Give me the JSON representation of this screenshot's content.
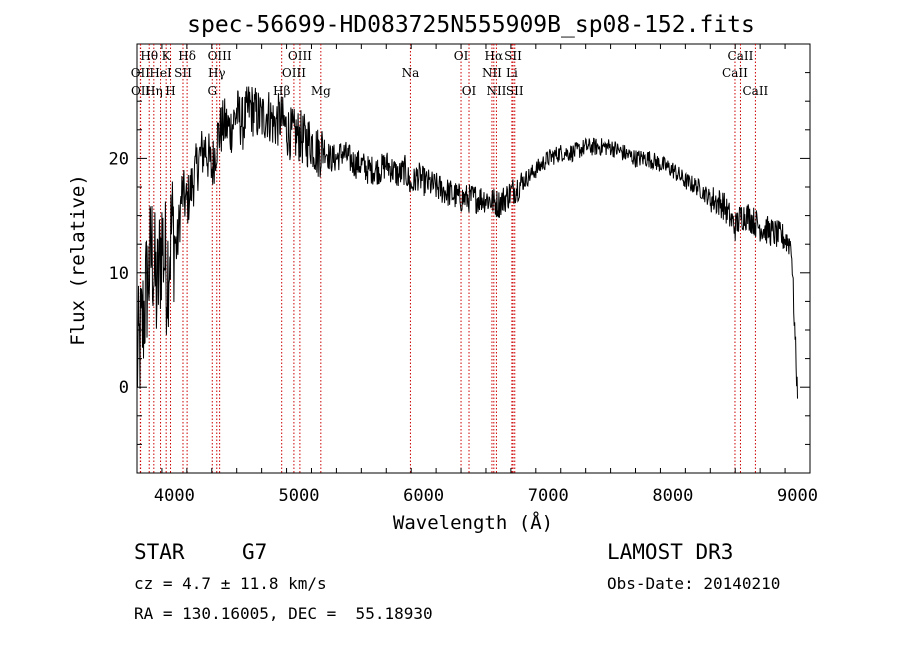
{
  "chart_data": {
    "type": "line",
    "title": "spec-56699-HD083725N555909B_sp08-152.fits",
    "xlabel": "Wavelength (Å)",
    "ylabel": "Flux (relative)",
    "xlim": [
      3700,
      9100
    ],
    "ylim": [
      -7.5,
      30
    ],
    "xticks": [
      4000,
      5000,
      6000,
      7000,
      8000,
      9000
    ],
    "yticks": [
      0,
      10,
      20
    ],
    "grid": false,
    "series": [
      {
        "x": [
          3700,
          3740,
          3780,
          3820,
          3860,
          3900,
          3940,
          3980,
          4020,
          4060,
          4100,
          4150,
          4200,
          4250,
          4300,
          4350,
          4400,
          4450,
          4500,
          4550,
          4600,
          4650,
          4700,
          4750,
          4800,
          4850,
          4900,
          4950,
          5000,
          5050,
          5100,
          5150,
          5200,
          5250,
          5300,
          5350,
          5400,
          5450,
          5500,
          5550,
          5600,
          5650,
          5700,
          5750,
          5800,
          5850,
          5900,
          5950,
          6000,
          6100,
          6200,
          6300,
          6400,
          6500,
          6600,
          6700,
          6800,
          6900,
          7000,
          7100,
          7200,
          7300,
          7400,
          7500,
          7600,
          7700,
          7800,
          7900,
          8000,
          8100,
          8200,
          8300,
          8400,
          8500,
          8550,
          8600,
          8700,
          8800,
          8900,
          8950,
          9000
        ],
        "y": [
          2,
          5,
          9,
          12,
          8,
          13,
          10,
          14,
          12,
          17,
          16,
          18,
          20,
          21,
          19,
          22,
          23,
          22.5,
          24,
          23,
          24.5,
          24,
          23.5,
          24,
          23,
          23.5,
          22.5,
          22,
          22,
          21.5,
          21.5,
          20.5,
          21,
          20,
          20,
          20.5,
          20,
          19.5,
          19.5,
          19,
          19,
          19,
          19.5,
          19,
          18.5,
          19,
          17.5,
          18.5,
          18,
          17.5,
          17,
          16.5,
          16.5,
          16.5,
          16,
          17,
          18,
          19,
          20,
          20.5,
          20.5,
          21,
          21,
          21,
          20.5,
          20,
          20,
          19.5,
          19,
          18,
          17.5,
          16.5,
          16,
          14,
          15,
          15,
          14,
          13.5,
          13,
          12.5,
          -1
        ]
      }
    ],
    "lines": [
      {
        "label": "Hθ",
        "x": 3798,
        "row": 0
      },
      {
        "label": "OII",
        "x": 3727,
        "row": 1
      },
      {
        "label": "OII",
        "x": 3729,
        "row": 2
      },
      {
        "label": "K",
        "x": 3934,
        "row": 0
      },
      {
        "label": "HeI",
        "x": 3889,
        "row": 1
      },
      {
        "label": "Hη",
        "x": 3835,
        "row": 2
      },
      {
        "label": "Hδ",
        "x": 4102,
        "row": 0
      },
      {
        "label": "SII",
        "x": 4069,
        "row": 1
      },
      {
        "label": "H",
        "x": 3969,
        "row": 2
      },
      {
        "label": "OIII",
        "x": 4363,
        "row": 0
      },
      {
        "label": "Hγ",
        "x": 4340,
        "row": 1
      },
      {
        "label": "G",
        "x": 4304,
        "row": 2
      },
      {
        "label": "OIII",
        "x": 5007,
        "row": 0
      },
      {
        "label": "OIII",
        "x": 4959,
        "row": 1
      },
      {
        "label": "Hβ",
        "x": 4861,
        "row": 2
      },
      {
        "label": "Mg",
        "x": 5175,
        "row": 2
      },
      {
        "label": "Na",
        "x": 5894,
        "row": 1
      },
      {
        "label": "OI",
        "x": 6300,
        "row": 0
      },
      {
        "label": "OI",
        "x": 6364,
        "row": 2
      },
      {
        "label": "Hα",
        "x": 6563,
        "row": 0
      },
      {
        "label": "SII",
        "x": 6717,
        "row": 0
      },
      {
        "label": "NII",
        "x": 6548,
        "row": 1
      },
      {
        "label": "Li",
        "x": 6708,
        "row": 1
      },
      {
        "label": "NII",
        "x": 6584,
        "row": 2
      },
      {
        "label": "SII",
        "x": 6731,
        "row": 2
      },
      {
        "label": "CaII",
        "x": 8542,
        "row": 0
      },
      {
        "label": "CaII",
        "x": 8498,
        "row": 1
      },
      {
        "label": "CaII",
        "x": 8662,
        "row": 2
      }
    ]
  },
  "footer": {
    "object_class": "STAR",
    "subclass": "G7",
    "survey": "LAMOST DR3",
    "cz": "cz = 4.7 ± 11.8 km/s",
    "obs_date": "Obs-Date: 20140210",
    "coords": "RA = 130.16005, DEC =  55.18930"
  },
  "colors": {
    "spectrum": "#000000",
    "line_markers": "#cc0000"
  }
}
